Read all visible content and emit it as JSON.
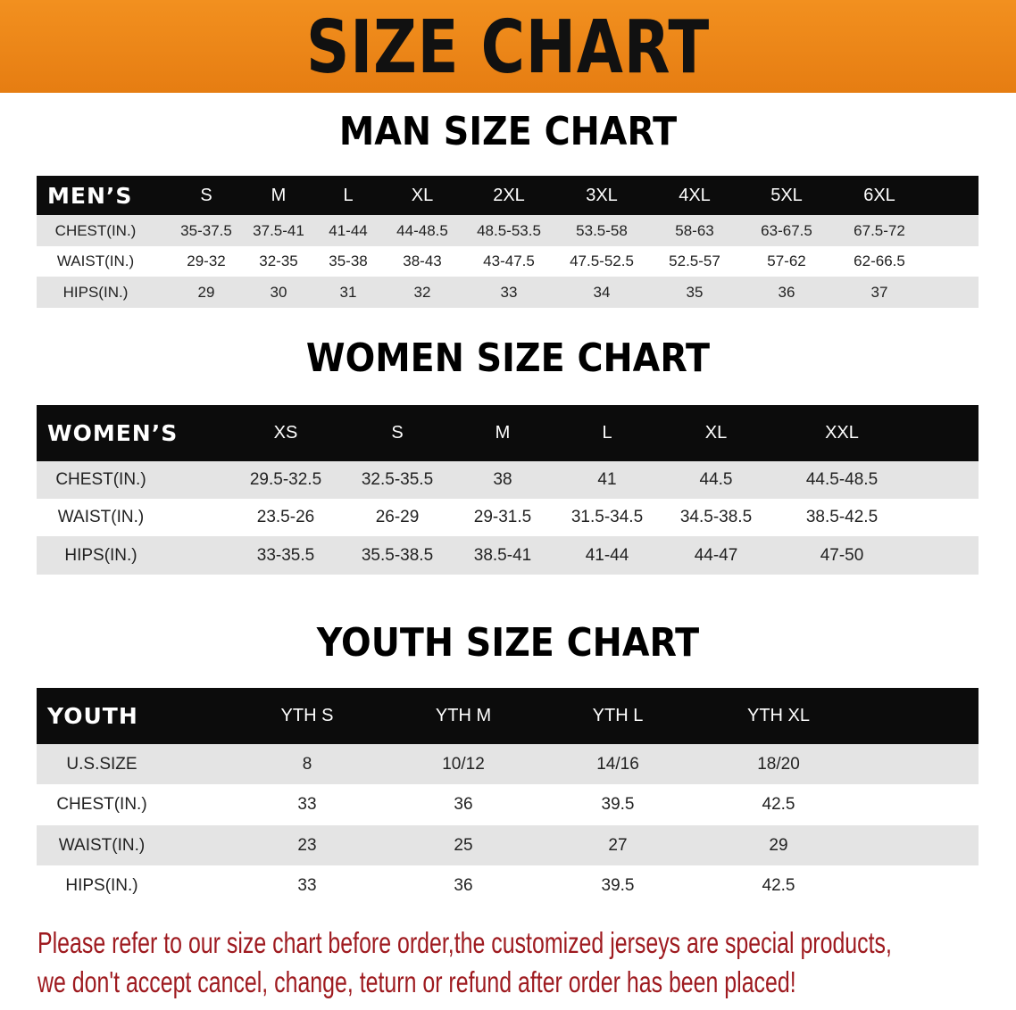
{
  "banner": {
    "title": "SIZE CHART",
    "color": "#ee8719"
  },
  "men": {
    "title": "MAN SIZE CHART",
    "header": "MEN’S",
    "sizes": [
      "S",
      "M",
      "L",
      "XL",
      "2XL",
      "3XL",
      "4XL",
      "5XL",
      "6XL"
    ],
    "rows": [
      {
        "label": "CHEST(IN.)",
        "values": [
          "35-37.5",
          "37.5-41",
          "41-44",
          "44-48.5",
          "48.5-53.5",
          "53.5-58",
          "58-63",
          "63-67.5",
          "67.5-72"
        ]
      },
      {
        "label": "WAIST(IN.)",
        "values": [
          "29-32",
          "32-35",
          "35-38",
          "38-43",
          "43-47.5",
          "47.5-52.5",
          "52.5-57",
          "57-62",
          "62-66.5"
        ]
      },
      {
        "label": "HIPS(IN.)",
        "values": [
          "29",
          "30",
          "31",
          "32",
          "33",
          "34",
          "35",
          "36",
          "37"
        ]
      }
    ]
  },
  "women": {
    "title": "WOMEN SIZE CHART",
    "header": "WOMEN’S",
    "sizes": [
      "XS",
      "S",
      "M",
      "L",
      "XL",
      "XXL"
    ],
    "rows": [
      {
        "label": "CHEST(IN.)",
        "values": [
          "29.5-32.5",
          "32.5-35.5",
          "38",
          "41",
          "44.5",
          "44.5-48.5"
        ]
      },
      {
        "label": "WAIST(IN.)",
        "values": [
          "23.5-26",
          "26-29",
          "29-31.5",
          "31.5-34.5",
          "34.5-38.5",
          "38.5-42.5"
        ]
      },
      {
        "label": "HIPS(IN.)",
        "values": [
          "33-35.5",
          "35.5-38.5",
          "38.5-41",
          "41-44",
          "44-47",
          "47-50"
        ]
      }
    ]
  },
  "youth": {
    "title": "YOUTH SIZE CHART",
    "header": "YOUTH",
    "sizes": [
      "YTH S",
      "YTH M",
      "YTH L",
      "YTH XL"
    ],
    "rows": [
      {
        "label": "U.S.SIZE",
        "values": [
          "8",
          "10/12",
          "14/16",
          "18/20"
        ]
      },
      {
        "label": "CHEST(IN.)",
        "values": [
          "33",
          "36",
          "39.5",
          "42.5"
        ]
      },
      {
        "label": "WAIST(IN.)",
        "values": [
          "23",
          "25",
          "27",
          "29"
        ]
      },
      {
        "label": "HIPS(IN.)",
        "values": [
          "33",
          "36",
          "39.5",
          "42.5"
        ]
      }
    ]
  },
  "notice": {
    "line1": "Please refer to our size chart before order,the customized jerseys are special products,",
    "line2": "we don't accept cancel, change, teturn or refund after order has been placed!",
    "color": "#9e1a1f"
  }
}
